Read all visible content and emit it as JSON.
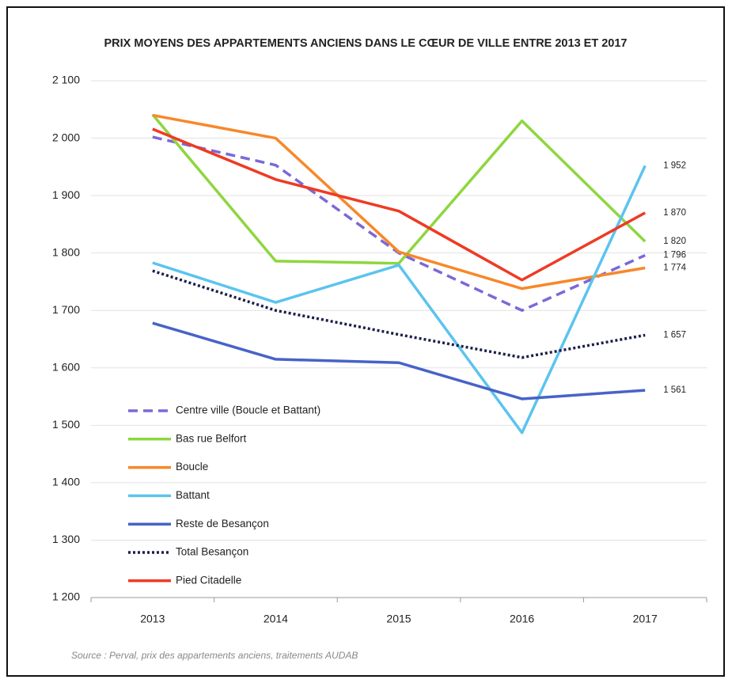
{
  "chart_data": {
    "type": "line",
    "title": "PRIX MOYENS DES APPARTEMENTS ANCIENS DANS LE CŒUR DE VILLE ENTRE 2013 ET 2017",
    "source": "Source : Perval, prix des appartements anciens, traitements AUDAB",
    "categories": [
      "2013",
      "2014",
      "2015",
      "2016",
      "2017"
    ],
    "ylim": [
      1200,
      2100
    ],
    "yticks": [
      {
        "value": 1200,
        "label": "1 200"
      },
      {
        "value": 1300,
        "label": "1 300"
      },
      {
        "value": 1400,
        "label": "1 400"
      },
      {
        "value": 1500,
        "label": "1 500"
      },
      {
        "value": 1600,
        "label": "1 600"
      },
      {
        "value": 1700,
        "label": "1 700"
      },
      {
        "value": 1800,
        "label": "1 800"
      },
      {
        "value": 1900,
        "label": "1 900"
      },
      {
        "value": 2000,
        "label": "2 000"
      },
      {
        "value": 2100,
        "label": "2 100"
      }
    ],
    "grid": true,
    "legend": "lower left",
    "series": [
      {
        "name": "Centre ville (Boucle et Battant)",
        "color": "#7b68d8",
        "style": "dashed",
        "values": [
          2002,
          1953,
          1800,
          1700,
          1796
        ],
        "value_labels": [
          null,
          null,
          null,
          null,
          "1 796"
        ]
      },
      {
        "name": "Bas rue Belfort",
        "color": "#8ed63f",
        "style": "solid",
        "values": [
          2041,
          1786,
          1782,
          2030,
          1820
        ],
        "value_labels": [
          null,
          null,
          null,
          null,
          "1 820"
        ]
      },
      {
        "name": "Boucle",
        "color": "#f7882a",
        "style": "solid",
        "values": [
          2040,
          2000,
          1802,
          1738,
          1774
        ],
        "value_labels": [
          null,
          null,
          null,
          null,
          "1 774"
        ]
      },
      {
        "name": "Battant",
        "color": "#5bc4ee",
        "style": "solid",
        "values": [
          1783,
          1714,
          1779,
          1487,
          1952
        ],
        "value_labels": [
          null,
          null,
          null,
          null,
          "1 952"
        ]
      },
      {
        "name": "Reste de Besançon",
        "color": "#4763c8",
        "style": "solid",
        "values": [
          1678,
          1615,
          1609,
          1546,
          1561
        ],
        "value_labels": [
          null,
          null,
          null,
          null,
          "1 561"
        ]
      },
      {
        "name": "Total Besançon",
        "color": "#1c1f4a",
        "style": "dotted",
        "values": [
          1769,
          1700,
          1658,
          1618,
          1657
        ],
        "value_labels": [
          null,
          null,
          null,
          null,
          "1 657"
        ]
      },
      {
        "name": "Pied Citadelle",
        "color": "#ee3b24",
        "style": "solid",
        "values": [
          2016,
          1928,
          1873,
          1753,
          1870
        ],
        "value_labels": [
          null,
          null,
          null,
          null,
          "1 870"
        ]
      }
    ]
  }
}
